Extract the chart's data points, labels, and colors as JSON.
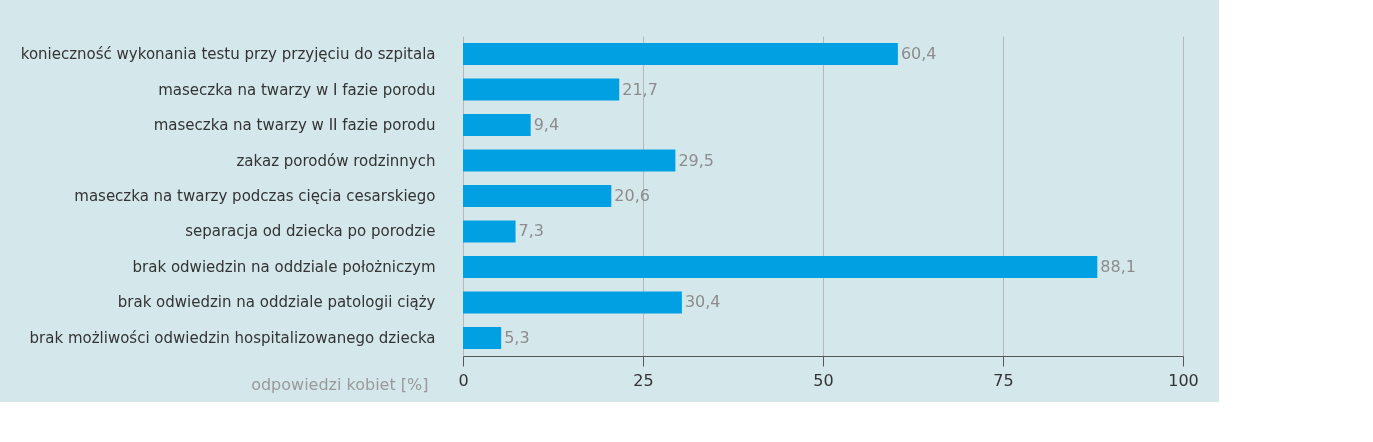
{
  "chart_data": {
    "type": "bar",
    "orientation": "horizontal",
    "categories": [
      "konieczność wykonania testu przy przyjęciu do szpitala",
      "maseczka na twarzy w I fazie porodu",
      "maseczka na twarzy w II fazie porodu",
      "zakaz porodów rodzinnych",
      "maseczka na twarzy podczas cięcia cesarskiego",
      "separacja od dziecka po porodzie",
      "brak odwiedzin na oddziale położniczym",
      "brak odwiedzin na oddziale patologii ciąży",
      "brak możliwości odwiedzin hospitalizowanego dziecka"
    ],
    "values": [
      60.4,
      21.7,
      9.4,
      29.5,
      20.6,
      7.3,
      88.1,
      30.4,
      5.3
    ],
    "value_labels": [
      "60,4",
      "21,7",
      "9,4",
      "29,5",
      "20,6",
      "7,3",
      "88,1",
      "30,4",
      "5,3"
    ],
    "color": "#00a0e3",
    "xlabel": "odpowiedzi kobiet [%]",
    "xlim": [
      0,
      100
    ],
    "xticks": [
      0,
      25,
      50,
      75,
      100
    ],
    "grid": "x"
  }
}
